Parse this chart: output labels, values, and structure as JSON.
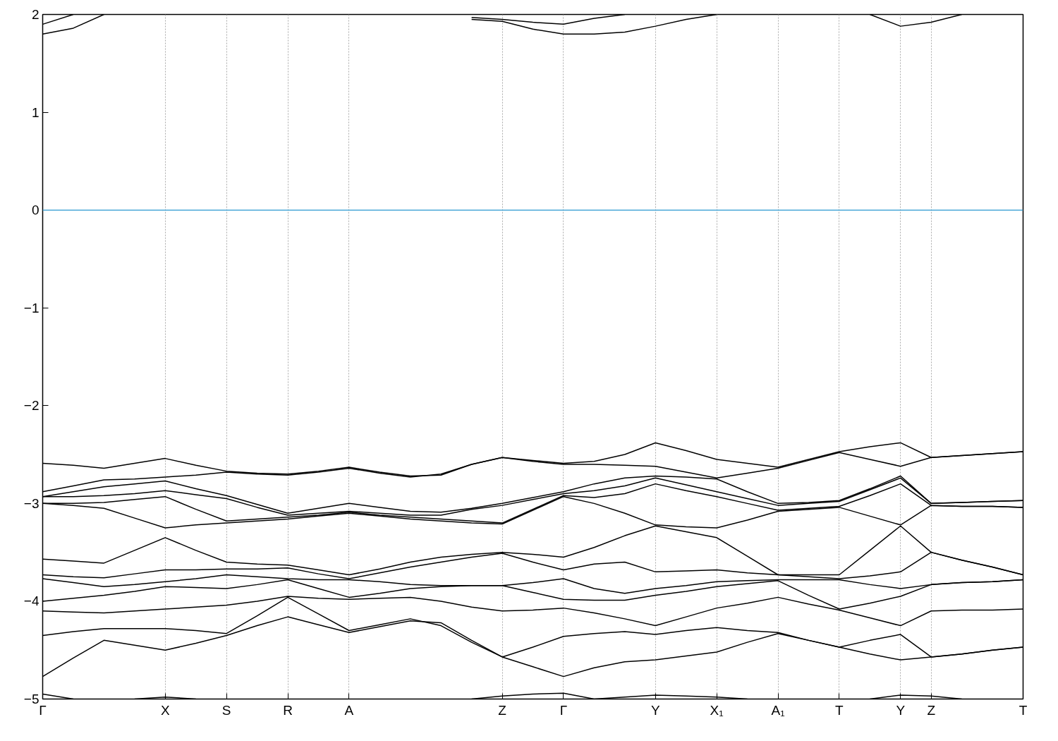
{
  "chart_data": {
    "type": "line",
    "categories": [
      "Γ",
      null,
      null,
      null,
      "X",
      null,
      "S",
      null,
      "R",
      null,
      "A",
      null,
      null,
      null,
      null,
      "Z",
      null,
      "Γ",
      null,
      null,
      "Y",
      null,
      "X₁",
      null,
      "A₁",
      null,
      "T",
      null,
      "Y",
      "Z",
      null,
      null,
      "T"
    ],
    "ylim": [
      -5,
      2
    ],
    "yticks": [
      -5,
      -4,
      -3,
      -2,
      -1,
      0,
      1,
      2
    ],
    "grid": "x",
    "ref_lines": [
      {
        "axis": "y",
        "value": 0,
        "color": "#4aa8d8"
      }
    ],
    "series": [
      {
        "color": "#000000",
        "values": [
          -2.59,
          -2.61,
          -2.64,
          -2.59,
          -2.54,
          -2.61,
          -2.67,
          -2.69,
          -2.7,
          -2.67,
          -2.63,
          -2.68,
          -2.72,
          -2.71,
          -2.6,
          -2.53,
          -2.56,
          -2.59,
          -2.57,
          -2.5,
          -2.38,
          -2.46,
          -2.55,
          -2.59,
          -2.63,
          -2.55,
          -2.47,
          -2.42,
          -2.38,
          -2.53,
          -2.51,
          -2.49,
          -2.47
        ]
      },
      {
        "color": "#000000",
        "values": [
          -2.88,
          -2.82,
          -2.76,
          -2.75,
          -2.73,
          -2.71,
          -2.68,
          -2.7,
          -2.71,
          -2.68,
          -2.64,
          -2.69,
          -2.73,
          -2.7,
          -2.6,
          -2.53,
          -2.57,
          -2.6,
          -2.6,
          -2.61,
          -2.62,
          -2.68,
          -2.74,
          -2.69,
          -2.64,
          -2.56,
          -2.48,
          -2.55,
          -2.62,
          -2.53,
          -2.51,
          -2.49,
          -2.47
        ]
      },
      {
        "color": "#000000",
        "values": [
          -2.93,
          -2.88,
          -2.83,
          -2.8,
          -2.77,
          -2.85,
          -2.92,
          -3.01,
          -3.1,
          -3.05,
          -3.0,
          -3.04,
          -3.08,
          -3.09,
          -3.05,
          -3.0,
          -2.94,
          -2.88,
          -2.8,
          -2.74,
          -2.72,
          -2.73,
          -2.75,
          -2.88,
          -3.0,
          -2.99,
          -2.97,
          -2.85,
          -2.72,
          -3.0,
          -2.99,
          -2.98,
          -2.97
        ]
      },
      {
        "color": "#000000",
        "values": [
          -2.93,
          -2.93,
          -2.92,
          -2.9,
          -2.87,
          -2.91,
          -2.95,
          -3.04,
          -3.12,
          -3.1,
          -3.08,
          -3.1,
          -3.12,
          -3.12,
          -3.06,
          -3.02,
          -2.96,
          -2.9,
          -2.87,
          -2.82,
          -2.74,
          -2.81,
          -2.88,
          -2.95,
          -3.02,
          -3.0,
          -2.98,
          -2.86,
          -2.74,
          -3.0,
          -2.99,
          -2.98,
          -2.97
        ]
      },
      {
        "color": "#000000",
        "values": [
          -3.0,
          -3.0,
          -2.99,
          -2.96,
          -2.93,
          -3.06,
          -3.18,
          -3.16,
          -3.14,
          -3.12,
          -3.09,
          -3.12,
          -3.14,
          -3.16,
          -3.18,
          -3.2,
          -3.06,
          -2.92,
          -2.94,
          -2.9,
          -2.8,
          -2.87,
          -2.93,
          -3.0,
          -3.07,
          -3.05,
          -3.03,
          -2.92,
          -2.8,
          -3.02,
          -3.03,
          -3.03,
          -3.04
        ]
      },
      {
        "color": "#000000",
        "values": [
          -3.0,
          -3.02,
          -3.05,
          -3.15,
          -3.25,
          -3.22,
          -3.2,
          -3.18,
          -3.16,
          -3.13,
          -3.1,
          -3.13,
          -3.16,
          -3.18,
          -3.2,
          -3.21,
          -3.07,
          -2.93,
          -3.0,
          -3.1,
          -3.22,
          -3.24,
          -3.25,
          -3.17,
          -3.08,
          -3.06,
          -3.04,
          -3.13,
          -3.22,
          -3.02,
          -3.03,
          -3.03,
          -3.04
        ]
      },
      {
        "color": "#000000",
        "values": [
          -3.57,
          -3.59,
          -3.61,
          -3.48,
          -3.35,
          -3.48,
          -3.6,
          -3.62,
          -3.63,
          -3.68,
          -3.73,
          -3.67,
          -3.6,
          -3.55,
          -3.52,
          -3.5,
          -3.52,
          -3.55,
          -3.45,
          -3.33,
          -3.23,
          -3.29,
          -3.35,
          -3.54,
          -3.73,
          -3.73,
          -3.73,
          -3.48,
          -3.23,
          -3.5,
          -3.58,
          -3.65,
          -3.73
        ]
      },
      {
        "color": "#000000",
        "values": [
          -3.73,
          -3.75,
          -3.76,
          -3.72,
          -3.68,
          -3.68,
          -3.67,
          -3.67,
          -3.66,
          -3.72,
          -3.77,
          -3.71,
          -3.65,
          -3.6,
          -3.55,
          -3.51,
          -3.6,
          -3.68,
          -3.62,
          -3.6,
          -3.7,
          -3.69,
          -3.68,
          -3.71,
          -3.73,
          -3.75,
          -3.77,
          -3.74,
          -3.7,
          -3.5,
          -3.58,
          -3.65,
          -3.73
        ]
      },
      {
        "color": "#000000",
        "values": [
          -3.77,
          -3.81,
          -3.85,
          -3.83,
          -3.8,
          -3.77,
          -3.73,
          -3.75,
          -3.77,
          -3.78,
          -3.78,
          -3.8,
          -3.83,
          -3.84,
          -3.84,
          -3.84,
          -3.81,
          -3.77,
          -3.87,
          -3.92,
          -3.87,
          -3.84,
          -3.8,
          -3.79,
          -3.78,
          -3.78,
          -3.78,
          -3.83,
          -3.87,
          -3.83,
          -3.81,
          -3.8,
          -3.78
        ]
      },
      {
        "color": "#000000",
        "values": [
          -4.0,
          -3.97,
          -3.94,
          -3.9,
          -3.85,
          -3.86,
          -3.87,
          -3.83,
          -3.78,
          -3.87,
          -3.96,
          -3.92,
          -3.87,
          -3.85,
          -3.84,
          -3.84,
          -3.91,
          -3.98,
          -3.99,
          -3.99,
          -3.94,
          -3.9,
          -3.85,
          -3.82,
          -3.79,
          -3.94,
          -4.08,
          -4.02,
          -3.95,
          -3.83,
          -3.81,
          -3.8,
          -3.78
        ]
      },
      {
        "color": "#000000",
        "values": [
          -4.1,
          -4.11,
          -4.12,
          -4.1,
          -4.08,
          -4.06,
          -4.04,
          -4.0,
          -3.95,
          -3.97,
          -3.98,
          -3.97,
          -3.96,
          -4.0,
          -4.06,
          -4.1,
          -4.09,
          -4.07,
          -4.12,
          -4.18,
          -4.25,
          -4.16,
          -4.07,
          -4.02,
          -3.96,
          -4.03,
          -4.09,
          -4.17,
          -4.25,
          -4.1,
          -4.09,
          -4.09,
          -4.08
        ]
      },
      {
        "color": "#000000",
        "values": [
          -4.35,
          -4.31,
          -4.28,
          -4.28,
          -4.28,
          -4.3,
          -4.33,
          -4.15,
          -3.96,
          -4.13,
          -4.3,
          -4.24,
          -4.18,
          -4.25,
          -4.42,
          -4.57,
          -4.47,
          -4.36,
          -4.33,
          -4.31,
          -4.34,
          -4.3,
          -4.27,
          -4.3,
          -4.32,
          -4.4,
          -4.47,
          -4.4,
          -4.34,
          -4.57,
          -4.54,
          -4.5,
          -4.47
        ]
      },
      {
        "color": "#000000",
        "values": [
          -4.77,
          -4.58,
          -4.4,
          -4.45,
          -4.5,
          -4.43,
          -4.35,
          -4.25,
          -4.16,
          -4.24,
          -4.32,
          -4.26,
          -4.2,
          -4.22,
          -4.4,
          -4.57,
          -4.67,
          -4.77,
          -4.68,
          -4.62,
          -4.6,
          -4.56,
          -4.52,
          -4.42,
          -4.33,
          -4.4,
          -4.47,
          -4.54,
          -4.6,
          -4.57,
          -4.54,
          -4.5,
          -4.47
        ]
      },
      {
        "color": "#000000",
        "values": [
          1.8,
          1.86,
          2.0,
          null,
          null,
          null,
          null,
          null,
          null,
          null,
          null,
          null,
          null,
          null,
          1.95,
          1.93,
          1.85,
          1.8,
          1.8,
          1.82,
          1.88,
          1.95,
          2.0,
          null,
          null,
          null,
          null,
          2.0,
          1.88,
          1.92,
          2.0,
          null,
          null
        ]
      },
      {
        "color": "#000000",
        "values": [
          1.9,
          2.0,
          null,
          null,
          null,
          null,
          null,
          null,
          null,
          null,
          null,
          null,
          null,
          null,
          1.97,
          1.95,
          1.92,
          1.9,
          1.96,
          2.0,
          null,
          null,
          null,
          null,
          null,
          null,
          null,
          null,
          null,
          null,
          null,
          null,
          null
        ]
      },
      {
        "color": "#000000",
        "values": [
          -4.95,
          -5.0,
          null,
          -5.0,
          -4.98,
          -5.0,
          null,
          null,
          null,
          null,
          null,
          null,
          null,
          null,
          -5.0,
          -4.97,
          -4.95,
          -4.94,
          -5.0,
          -4.98,
          -4.96,
          -4.97,
          -4.98,
          -5.0,
          null,
          null,
          null,
          -5.0,
          -4.96,
          -4.97,
          -5.0,
          null,
          null
        ]
      }
    ]
  }
}
